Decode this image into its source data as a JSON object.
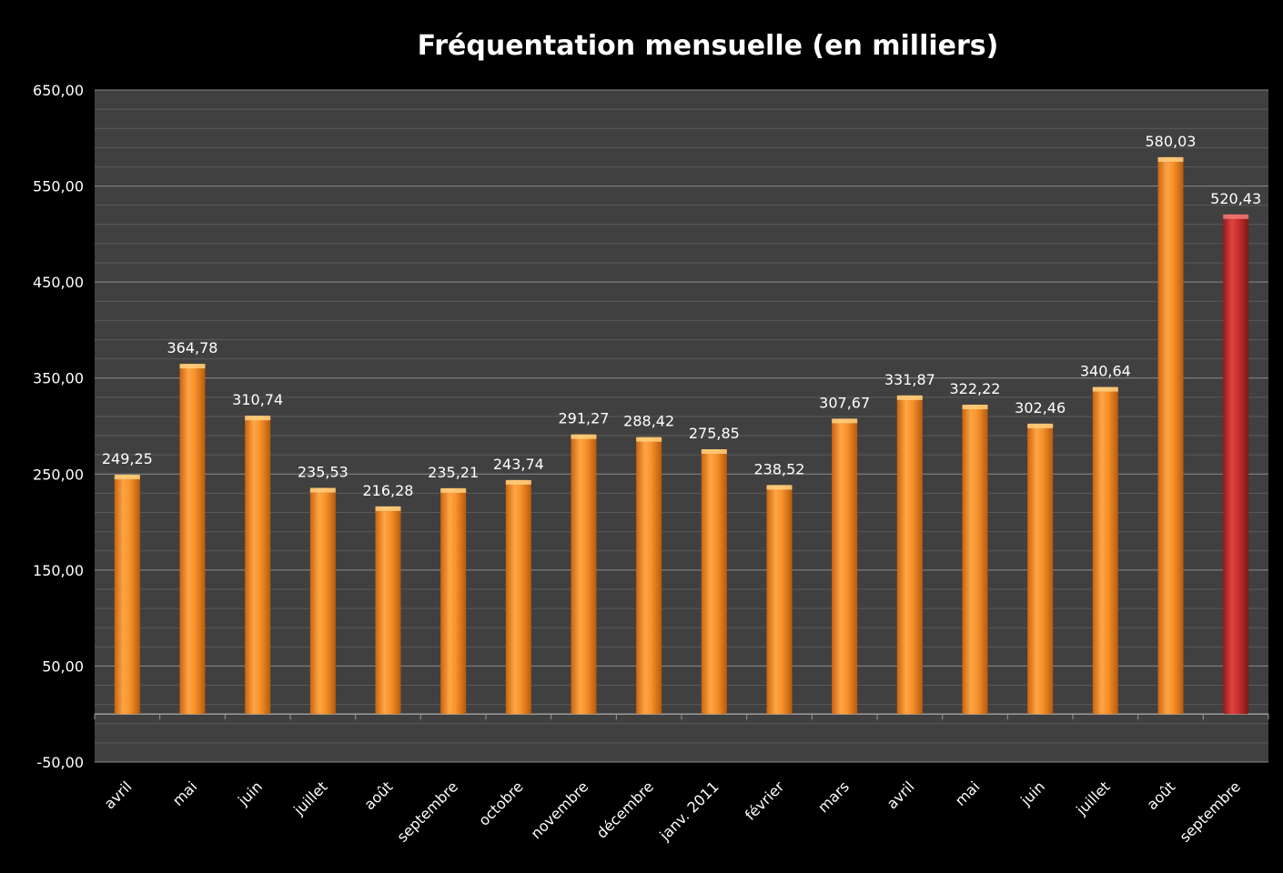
{
  "chart_data": {
    "type": "bar",
    "title": "Fréquentation mensuelle (en milliers)",
    "xlabel": "",
    "ylabel": "",
    "ylim": [
      -50,
      650
    ],
    "yticks": [
      -50,
      50,
      150,
      250,
      350,
      450,
      550,
      650
    ],
    "ytick_labels": [
      "-50,00",
      "50,00",
      "150,00",
      "250,00",
      "350,00",
      "450,00",
      "550,00",
      "650,00"
    ],
    "minor_grid_step": 20,
    "grid": true,
    "legend": "none",
    "categories": [
      "avril",
      "mai",
      "juin",
      "juillet",
      "août",
      "septembre",
      "octobre",
      "novembre",
      "décembre",
      "janv. 2011",
      "février",
      "mars",
      "avril",
      "mai",
      "juin",
      "juillet",
      "août",
      "septembre"
    ],
    "values": [
      249.25,
      364.78,
      310.74,
      235.53,
      216.28,
      235.21,
      243.74,
      291.27,
      288.42,
      275.85,
      238.52,
      307.67,
      331.87,
      322.22,
      302.46,
      340.64,
      580.03,
      520.43
    ],
    "value_labels": [
      "249,25",
      "364,78",
      "310,74",
      "235,53",
      "216,28",
      "235,21",
      "243,74",
      "291,27",
      "288,42",
      "275,85",
      "238,52",
      "307,67",
      "331,87",
      "322,22",
      "302,46",
      "340,64",
      "580,03",
      "520,43"
    ],
    "highlight_index": 17,
    "colors": {
      "background": "#000000",
      "plot_area": "#404040",
      "gridline_major": "#8a8a8a",
      "gridline_minor": "#5a5a5a",
      "bar": "#f7922a",
      "bar_highlight": "#c9302c",
      "text": "#ffffff"
    }
  }
}
